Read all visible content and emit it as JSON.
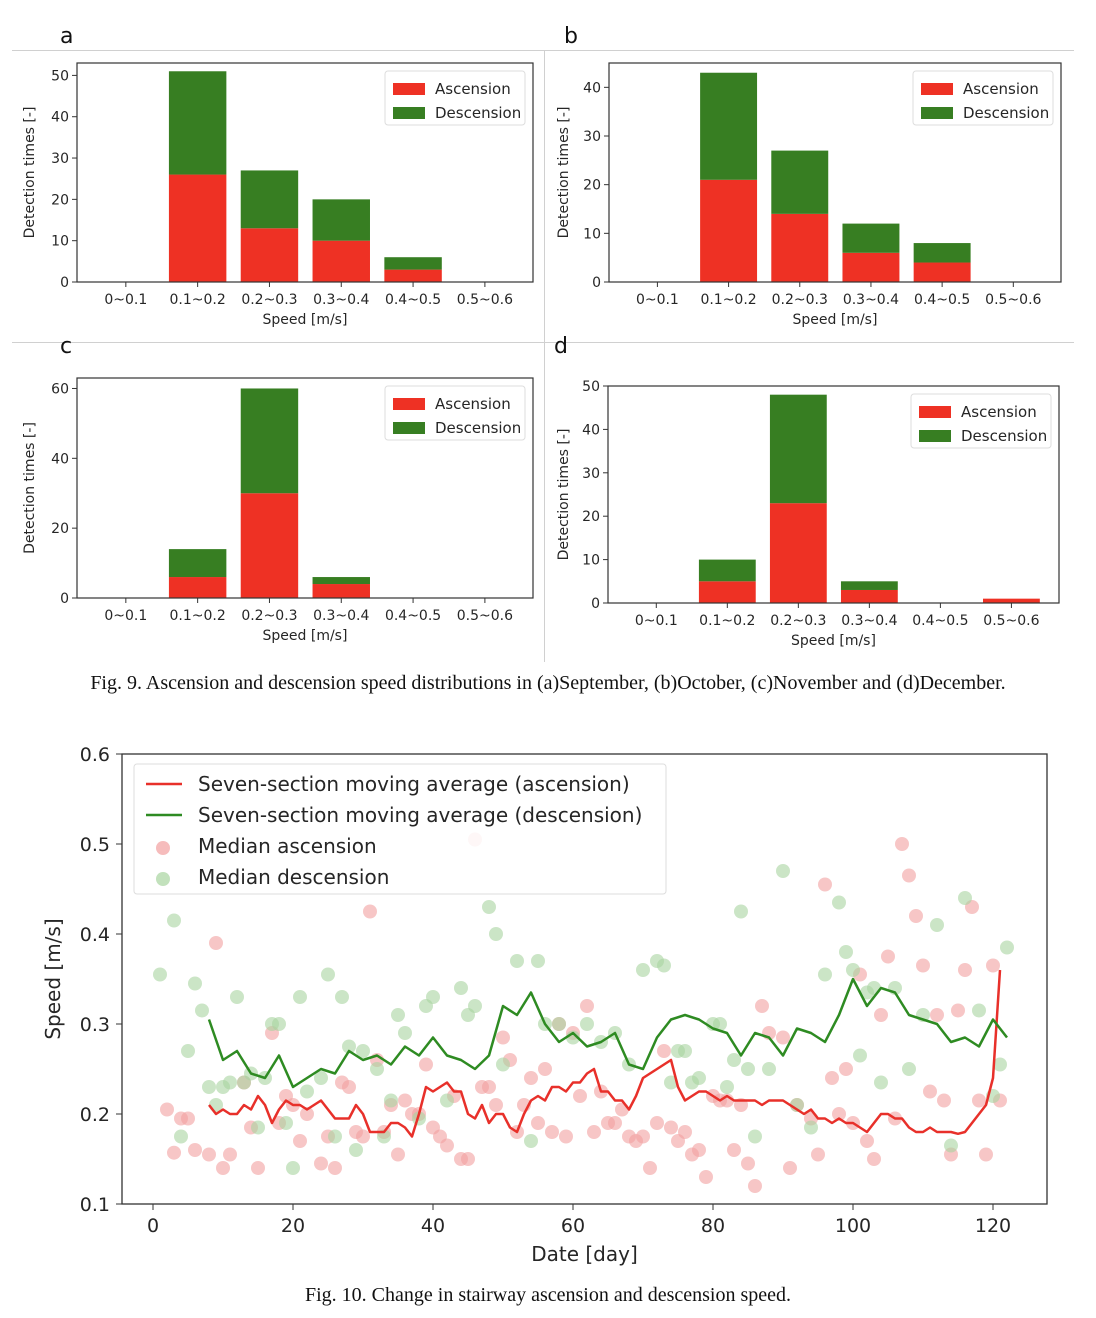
{
  "figure9": {
    "caption": "Fig. 9. Ascension and descension speed distributions in (a)September, (b)October, (c)November and (d)December."
  },
  "figure10": {
    "caption": "Fig. 10. Change in stairway ascension and descension speed."
  },
  "colors": {
    "ascension_bar": "#ee3124",
    "descension_bar": "#377e22",
    "ascension_line": "#e8302a",
    "descension_line": "#2e8b22",
    "ascension_point": "#f2a0a0",
    "descension_point": "#a8d4a0"
  },
  "chart_data": [
    {
      "id": "a",
      "panel_label": "a",
      "type": "bar",
      "stacked": true,
      "title": "",
      "xlabel": "Speed [m/s]",
      "ylabel": "Detection times [-]",
      "categories": [
        "0~0.1",
        "0.1~0.2",
        "0.2~0.3",
        "0.3~0.4",
        "0.4~0.5",
        "0.5~0.6"
      ],
      "series": [
        {
          "name": "Ascension",
          "values": [
            0,
            26,
            13,
            10,
            3,
            0
          ]
        },
        {
          "name": "Descension",
          "values": [
            0,
            25,
            14,
            10,
            3,
            0
          ]
        }
      ],
      "ylim": [
        0,
        53
      ],
      "yticks": [
        0,
        10,
        20,
        30,
        40,
        50
      ],
      "legend": "top-right",
      "grid": false
    },
    {
      "id": "b",
      "panel_label": "b",
      "type": "bar",
      "stacked": true,
      "title": "",
      "xlabel": "Speed [m/s]",
      "ylabel": "Detection times [-]",
      "categories": [
        "0~0.1",
        "0.1~0.2",
        "0.2~0.3",
        "0.3~0.4",
        "0.4~0.5",
        "0.5~0.6"
      ],
      "series": [
        {
          "name": "Ascension",
          "values": [
            0,
            21,
            14,
            6,
            4,
            0
          ]
        },
        {
          "name": "Descension",
          "values": [
            0,
            22,
            13,
            6,
            4,
            0
          ]
        }
      ],
      "ylim": [
        0,
        45
      ],
      "yticks": [
        0,
        10,
        20,
        30,
        40
      ],
      "legend": "top-right",
      "grid": false
    },
    {
      "id": "c",
      "panel_label": "c",
      "type": "bar",
      "stacked": true,
      "title": "",
      "xlabel": "Speed [m/s]",
      "ylabel": "Detection times [-]",
      "categories": [
        "0~0.1",
        "0.1~0.2",
        "0.2~0.3",
        "0.3~0.4",
        "0.4~0.5",
        "0.5~0.6"
      ],
      "series": [
        {
          "name": "Ascension",
          "values": [
            0,
            6,
            30,
            4,
            0,
            0
          ]
        },
        {
          "name": "Descension",
          "values": [
            0,
            8,
            30,
            2,
            0,
            0
          ]
        }
      ],
      "ylim": [
        0,
        63
      ],
      "yticks": [
        0,
        20,
        40,
        60
      ],
      "legend": "top-right",
      "grid": false
    },
    {
      "id": "d",
      "panel_label": "d",
      "type": "bar",
      "stacked": true,
      "title": "",
      "xlabel": "Speed [m/s]",
      "ylabel": "Detection times [-]",
      "categories": [
        "0~0.1",
        "0.1~0.2",
        "0.2~0.3",
        "0.3~0.4",
        "0.4~0.5",
        "0.5~0.6"
      ],
      "series": [
        {
          "name": "Ascension",
          "values": [
            0,
            5,
            23,
            3,
            0,
            1
          ]
        },
        {
          "name": "Descension",
          "values": [
            0,
            5,
            25,
            2,
            0,
            0
          ]
        }
      ],
      "ylim": [
        0,
        50
      ],
      "yticks": [
        0,
        10,
        20,
        30,
        40,
        50
      ],
      "legend": "top-right",
      "grid": false
    },
    {
      "id": "speed-trend",
      "type": "line",
      "title": "",
      "xlabel": "Date [day]",
      "ylabel": "Speed [m/s]",
      "xlim": [
        -4,
        128
      ],
      "ylim": [
        0.1,
        0.6
      ],
      "xticks": [
        0,
        20,
        40,
        60,
        80,
        100,
        120
      ],
      "yticks": [
        0.1,
        0.2,
        0.3,
        0.4,
        0.5,
        0.6
      ],
      "legend": "top-left",
      "grid": false,
      "series": [
        {
          "name": "Seven-section moving average (ascension)",
          "kind": "line",
          "x": [
            8,
            9,
            10,
            11,
            12,
            13,
            14,
            15,
            16,
            17,
            18,
            19,
            20,
            21,
            22,
            23,
            24,
            25,
            26,
            27,
            28,
            29,
            30,
            31,
            32,
            33,
            34,
            35,
            36,
            37,
            38,
            39,
            40,
            41,
            42,
            43,
            44,
            45,
            46,
            47,
            48,
            49,
            50,
            51,
            52,
            53,
            54,
            55,
            56,
            57,
            58,
            59,
            60,
            61,
            62,
            63,
            64,
            65,
            66,
            67,
            68,
            69,
            70,
            71,
            72,
            73,
            74,
            75,
            76,
            77,
            78,
            79,
            80,
            81,
            82,
            83,
            84,
            85,
            86,
            87,
            88,
            89,
            90,
            91,
            92,
            93,
            94,
            95,
            96,
            97,
            98,
            99,
            100,
            101,
            102,
            103,
            104,
            105,
            106,
            107,
            108,
            109,
            110,
            111,
            112,
            113,
            114,
            115,
            116,
            117,
            118,
            119,
            120,
            121
          ],
          "y": [
            0.21,
            0.2,
            0.205,
            0.2,
            0.2,
            0.21,
            0.205,
            0.22,
            0.21,
            0.19,
            0.205,
            0.215,
            0.21,
            0.21,
            0.205,
            0.21,
            0.215,
            0.205,
            0.195,
            0.195,
            0.195,
            0.21,
            0.2,
            0.18,
            0.18,
            0.18,
            0.19,
            0.19,
            0.185,
            0.175,
            0.2,
            0.23,
            0.225,
            0.23,
            0.235,
            0.225,
            0.225,
            0.2,
            0.195,
            0.21,
            0.19,
            0.2,
            0.2,
            0.185,
            0.18,
            0.2,
            0.215,
            0.22,
            0.215,
            0.23,
            0.23,
            0.225,
            0.235,
            0.235,
            0.245,
            0.25,
            0.225,
            0.225,
            0.215,
            0.215,
            0.205,
            0.22,
            0.24,
            0.245,
            0.25,
            0.255,
            0.26,
            0.23,
            0.215,
            0.22,
            0.225,
            0.225,
            0.22,
            0.215,
            0.22,
            0.215,
            0.215,
            0.215,
            0.215,
            0.21,
            0.215,
            0.215,
            0.215,
            0.21,
            0.205,
            0.2,
            0.205,
            0.195,
            0.195,
            0.19,
            0.195,
            0.19,
            0.19,
            0.185,
            0.18,
            0.19,
            0.2,
            0.2,
            0.195,
            0.195,
            0.185,
            0.18,
            0.18,
            0.185,
            0.18,
            0.18,
            0.18,
            0.178,
            0.18,
            0.19,
            0.2,
            0.21,
            0.24,
            0.36
          ]
        },
        {
          "name": "Seven-section moving average (descension)",
          "kind": "line",
          "x": [
            8,
            10,
            12,
            14,
            16,
            18,
            20,
            22,
            24,
            26,
            28,
            30,
            32,
            34,
            36,
            38,
            40,
            42,
            44,
            46,
            48,
            50,
            52,
            54,
            56,
            58,
            60,
            62,
            64,
            66,
            68,
            70,
            72,
            74,
            76,
            78,
            80,
            82,
            84,
            86,
            88,
            90,
            92,
            94,
            96,
            98,
            100,
            102,
            104,
            106,
            108,
            110,
            112,
            114,
            116,
            118,
            120,
            122
          ],
          "y": [
            0.305,
            0.26,
            0.27,
            0.245,
            0.24,
            0.265,
            0.23,
            0.24,
            0.25,
            0.245,
            0.27,
            0.26,
            0.265,
            0.255,
            0.275,
            0.265,
            0.285,
            0.265,
            0.26,
            0.25,
            0.265,
            0.32,
            0.31,
            0.335,
            0.3,
            0.28,
            0.29,
            0.275,
            0.28,
            0.29,
            0.255,
            0.25,
            0.285,
            0.305,
            0.31,
            0.305,
            0.295,
            0.29,
            0.265,
            0.29,
            0.285,
            0.265,
            0.295,
            0.29,
            0.28,
            0.31,
            0.35,
            0.32,
            0.34,
            0.335,
            0.31,
            0.305,
            0.3,
            0.28,
            0.285,
            0.275,
            0.305,
            0.285
          ]
        },
        {
          "name": "Median ascension",
          "kind": "scatter",
          "x": [
            2,
            3,
            4,
            5,
            6,
            8,
            9,
            10,
            11,
            13,
            14,
            15,
            17,
            18,
            19,
            20,
            21,
            22,
            24,
            25,
            26,
            27,
            28,
            29,
            30,
            31,
            32,
            33,
            34,
            35,
            36,
            37,
            38,
            39,
            40,
            41,
            42,
            43,
            44,
            45,
            46,
            47,
            48,
            49,
            50,
            51,
            52,
            53,
            54,
            55,
            56,
            57,
            58,
            59,
            60,
            61,
            62,
            63,
            64,
            65,
            66,
            67,
            68,
            69,
            70,
            71,
            72,
            73,
            74,
            75,
            76,
            77,
            78,
            79,
            80,
            81,
            82,
            83,
            84,
            85,
            86,
            87,
            88,
            90,
            91,
            92,
            94,
            95,
            96,
            97,
            98,
            99,
            100,
            101,
            102,
            103,
            104,
            105,
            106,
            107,
            108,
            109,
            110,
            111,
            112,
            113,
            114,
            115,
            116,
            117,
            118,
            119,
            120,
            121
          ],
          "y": [
            0.205,
            0.157,
            0.195,
            0.195,
            0.16,
            0.155,
            0.39,
            0.14,
            0.155,
            0.235,
            0.185,
            0.14,
            0.29,
            0.19,
            0.22,
            0.21,
            0.17,
            0.2,
            0.145,
            0.175,
            0.14,
            0.235,
            0.23,
            0.18,
            0.175,
            0.425,
            0.26,
            0.18,
            0.21,
            0.155,
            0.215,
            0.2,
            0.2,
            0.255,
            0.185,
            0.175,
            0.165,
            0.22,
            0.15,
            0.15,
            0.505,
            0.23,
            0.23,
            0.21,
            0.285,
            0.26,
            0.18,
            0.21,
            0.24,
            0.19,
            0.25,
            0.18,
            0.3,
            0.175,
            0.29,
            0.22,
            0.32,
            0.18,
            0.225,
            0.19,
            0.19,
            0.205,
            0.175,
            0.17,
            0.175,
            0.14,
            0.19,
            0.27,
            0.185,
            0.17,
            0.18,
            0.155,
            0.16,
            0.13,
            0.22,
            0.215,
            0.215,
            0.16,
            0.21,
            0.145,
            0.12,
            0.32,
            0.29,
            0.285,
            0.14,
            0.21,
            0.195,
            0.155,
            0.455,
            0.24,
            0.2,
            0.25,
            0.19,
            0.355,
            0.17,
            0.15,
            0.31,
            0.375,
            0.195,
            0.5,
            0.465,
            0.42,
            0.365,
            0.225,
            0.31,
            0.215,
            0.155,
            0.315,
            0.36,
            0.43,
            0.215,
            0.155,
            0.365,
            0.215
          ]
        },
        {
          "name": "Median descension",
          "kind": "scatter",
          "x": [
            1,
            3,
            4,
            5,
            6,
            7,
            8,
            9,
            10,
            11,
            12,
            13,
            14,
            15,
            16,
            17,
            18,
            19,
            20,
            21,
            22,
            24,
            25,
            26,
            27,
            28,
            29,
            30,
            32,
            33,
            34,
            35,
            36,
            38,
            39,
            40,
            42,
            44,
            45,
            46,
            48,
            49,
            50,
            52,
            54,
            55,
            56,
            58,
            60,
            62,
            64,
            66,
            68,
            70,
            72,
            73,
            74,
            75,
            76,
            77,
            78,
            80,
            81,
            82,
            83,
            84,
            85,
            86,
            88,
            90,
            92,
            94,
            96,
            98,
            99,
            100,
            101,
            102,
            103,
            104,
            106,
            108,
            110,
            112,
            114,
            116,
            118,
            120,
            121,
            122
          ],
          "y": [
            0.355,
            0.415,
            0.175,
            0.27,
            0.345,
            0.315,
            0.23,
            0.21,
            0.23,
            0.235,
            0.33,
            0.235,
            0.245,
            0.185,
            0.24,
            0.3,
            0.3,
            0.19,
            0.14,
            0.33,
            0.225,
            0.24,
            0.355,
            0.175,
            0.33,
            0.275,
            0.16,
            0.27,
            0.25,
            0.175,
            0.215,
            0.31,
            0.29,
            0.195,
            0.32,
            0.33,
            0.215,
            0.34,
            0.31,
            0.32,
            0.43,
            0.4,
            0.255,
            0.37,
            0.17,
            0.37,
            0.3,
            0.3,
            0.285,
            0.3,
            0.28,
            0.29,
            0.255,
            0.36,
            0.37,
            0.365,
            0.235,
            0.27,
            0.27,
            0.235,
            0.24,
            0.3,
            0.3,
            0.23,
            0.26,
            0.425,
            0.25,
            0.175,
            0.25,
            0.47,
            0.21,
            0.185,
            0.355,
            0.435,
            0.38,
            0.36,
            0.265,
            0.335,
            0.34,
            0.235,
            0.34,
            0.25,
            0.31,
            0.41,
            0.165,
            0.44,
            0.315,
            0.22,
            0.255,
            0.385
          ]
        }
      ]
    }
  ]
}
